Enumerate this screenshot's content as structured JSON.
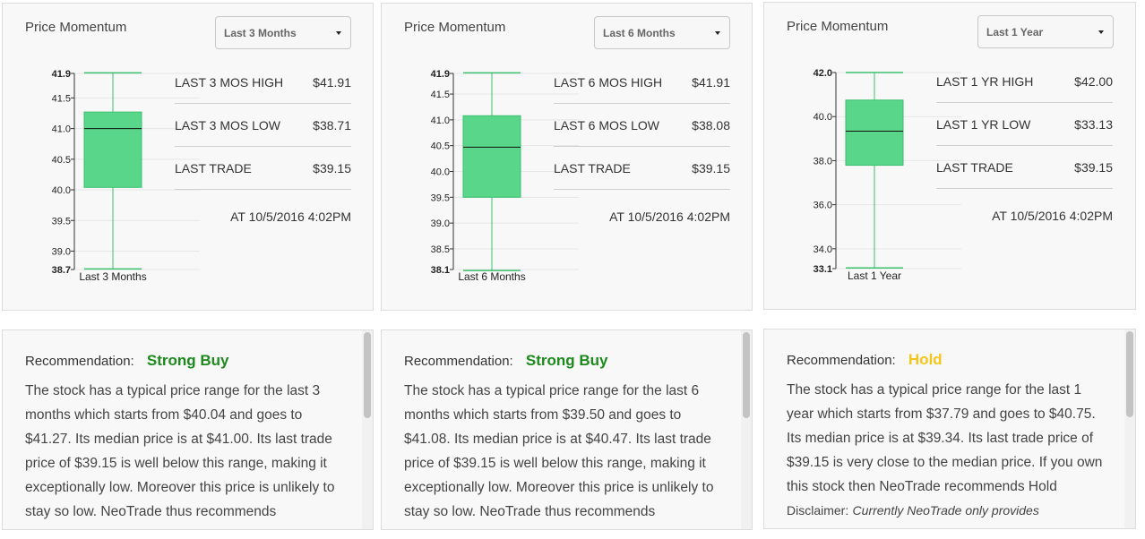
{
  "colors": {
    "box_fill": "#5ad68a",
    "box_stroke": "#3cbf6e",
    "strong_buy": "#1b8a1b",
    "hold": "#f5c518"
  },
  "momentum_panels": [
    {
      "title": "Price Momentum",
      "period_select": "Last 3 Months",
      "box_label": "Last 3 Months",
      "axis_ticks": [
        "41.9",
        "41.5",
        "41.0",
        "40.5",
        "40.0",
        "39.5",
        "39.0",
        "38.7"
      ],
      "stats": [
        {
          "label": "LAST 3 MOS HIGH",
          "value": "$41.91"
        },
        {
          "label": "LAST 3 MOS LOW",
          "value": "$38.71"
        },
        {
          "label": "LAST TRADE",
          "value": "$39.15"
        }
      ],
      "trade_time": "AT 10/5/2016 4:02PM"
    },
    {
      "title": "Price Momentum",
      "period_select": "Last 6 Months",
      "box_label": "Last 6 Months",
      "axis_ticks": [
        "41.9",
        "41.5",
        "41.0",
        "40.5",
        "40.0",
        "39.5",
        "39.0",
        "38.5",
        "38.1"
      ],
      "stats": [
        {
          "label": "LAST 6 MOS HIGH",
          "value": "$41.91"
        },
        {
          "label": "LAST 6 MOS LOW",
          "value": "$38.08"
        },
        {
          "label": "LAST TRADE",
          "value": "$39.15"
        }
      ],
      "trade_time": "AT 10/5/2016 4:02PM"
    },
    {
      "title": "Price Momentum",
      "period_select": "Last 1 Year",
      "box_label": "Last 1 Year",
      "axis_ticks": [
        "42.0",
        "40.0",
        "38.0",
        "36.0",
        "34.0",
        "33.1"
      ],
      "stats": [
        {
          "label": "LAST 1 YR HIGH",
          "value": "$42.00"
        },
        {
          "label": "LAST 1 YR LOW",
          "value": "$33.13"
        },
        {
          "label": "LAST TRADE",
          "value": "$39.15"
        }
      ],
      "trade_time": "AT 10/5/2016 4:02PM"
    }
  ],
  "chart_data": [
    {
      "type": "boxplot",
      "categories": [
        "Last 3 Months"
      ],
      "ylim": [
        38.7,
        41.9
      ],
      "yticks": [
        41.9,
        41.5,
        41.0,
        40.5,
        40.0,
        39.5,
        39.0,
        38.7
      ],
      "bold_ticks": [
        41.9,
        38.7
      ],
      "whisker_low": 38.71,
      "q1": 40.04,
      "median": 41.0,
      "q3": 41.27,
      "whisker_high": 41.91
    },
    {
      "type": "boxplot",
      "categories": [
        "Last 6 Months"
      ],
      "ylim": [
        38.1,
        41.9
      ],
      "yticks": [
        41.9,
        41.5,
        41.0,
        40.5,
        40.0,
        39.5,
        39.0,
        38.5,
        38.1
      ],
      "bold_ticks": [
        41.9,
        38.1
      ],
      "whisker_low": 38.08,
      "q1": 39.5,
      "median": 40.47,
      "q3": 41.08,
      "whisker_high": 41.91
    },
    {
      "type": "boxplot",
      "categories": [
        "Last 1 Year"
      ],
      "ylim": [
        33.1,
        42.0
      ],
      "yticks": [
        42.0,
        40.0,
        38.0,
        36.0,
        34.0,
        33.1
      ],
      "bold_ticks": [
        42.0,
        33.1
      ],
      "whisker_low": 33.13,
      "q1": 37.79,
      "median": 39.34,
      "q3": 40.75,
      "whisker_high": 42.0
    }
  ],
  "recommendations": [
    {
      "label": "Recommendation:",
      "value": "Strong Buy",
      "text": "The stock has a typical price range for the last 3 months which starts from $40.04 and goes to $41.27. Its median price is at $41.00. Its last trade price of $39.15 is well below this range, making it exceptionally low. Moreover this price is unlikely to stay so low. NeoTrade thus recommends"
    },
    {
      "label": "Recommendation:",
      "value": "Strong Buy",
      "text": "The stock has a typical price range for the last 6 months which starts from $39.50 and goes to $41.08. Its median price is at $40.47. Its last trade price of $39.15 is well below this range, making it exceptionally low. Moreover this price is unlikely to stay so low. NeoTrade thus recommends"
    },
    {
      "label": "Recommendation:",
      "value": "Hold",
      "text": "The stock has a typical price range for the last 1 year which starts from $37.79 and goes to $40.75. Its median price is at $39.34. Its last trade price of $39.15 is very close to the median price. If you own this stock then NeoTrade recommends Hold",
      "disclaimer_label": "Disclaimer:",
      "disclaimer_text": "Currently NeoTrade only provides"
    }
  ]
}
